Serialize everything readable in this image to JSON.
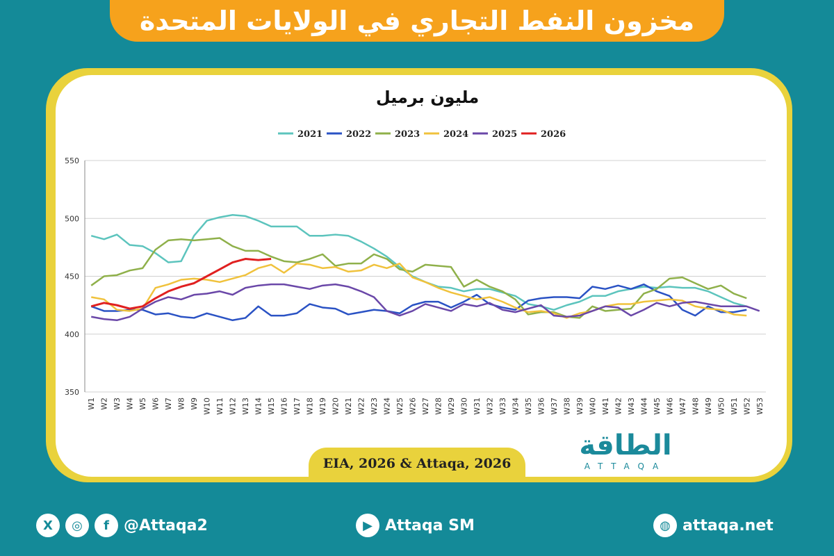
{
  "header": {
    "title": "مخزون النفط التجاري في الولايات المتحدة"
  },
  "chart_data": {
    "type": "line",
    "subtitle": "مليون برميل",
    "categories": [
      "W1",
      "W2",
      "W3",
      "W4",
      "W5",
      "W6",
      "W7",
      "W8",
      "W9",
      "W10",
      "W11",
      "W12",
      "W13",
      "W14",
      "W15",
      "W16",
      "W17",
      "W18",
      "W19",
      "W20",
      "W21",
      "W22",
      "W23",
      "W24",
      "W25",
      "W26",
      "W27",
      "W28",
      "W29",
      "W30",
      "W31",
      "W32",
      "W33",
      "W34",
      "W35",
      "W36",
      "W37",
      "W38",
      "W39",
      "W40",
      "W41",
      "W42",
      "W43",
      "W44",
      "W45",
      "W46",
      "W47",
      "W48",
      "W49",
      "W50",
      "W51",
      "W52",
      "W53"
    ],
    "ylim": [
      350,
      550
    ],
    "yticks": [
      350,
      400,
      450,
      500,
      550
    ],
    "grid": true,
    "series": [
      {
        "name": "2021",
        "color": "#5cc4bd",
        "values": [
          485,
          482,
          486,
          477,
          476,
          470,
          462,
          463,
          485,
          498,
          501,
          503,
          502,
          498,
          493,
          493,
          493,
          485,
          485,
          486,
          485,
          480,
          474,
          467,
          458,
          450,
          445,
          441,
          440,
          437,
          439,
          439,
          436,
          433,
          426,
          424,
          421,
          425,
          428,
          433,
          433,
          437,
          439,
          441,
          440,
          441,
          440,
          440,
          437,
          432,
          427,
          424,
          null
        ]
      },
      {
        "name": "2022",
        "color": "#2a52c4",
        "values": [
          424,
          420,
          420,
          421,
          421,
          417,
          418,
          415,
          414,
          418,
          415,
          412,
          414,
          424,
          416,
          416,
          418,
          426,
          423,
          422,
          417,
          419,
          421,
          420,
          418,
          425,
          428,
          428,
          423,
          428,
          434,
          426,
          423,
          421,
          429,
          431,
          432,
          432,
          431,
          441,
          439,
          442,
          439,
          443,
          437,
          433,
          421,
          416,
          424,
          419,
          419,
          421,
          null
        ]
      },
      {
        "name": "2023",
        "color": "#8fb04a",
        "values": [
          442,
          450,
          451,
          455,
          457,
          473,
          481,
          482,
          481,
          482,
          483,
          476,
          472,
          472,
          467,
          463,
          462,
          465,
          469,
          459,
          461,
          461,
          469,
          465,
          456,
          454,
          460,
          459,
          458,
          441,
          447,
          441,
          437,
          430,
          417,
          419,
          419,
          415,
          414,
          424,
          420,
          421,
          422,
          435,
          439,
          448,
          449,
          444,
          439,
          442,
          435,
          431,
          null
        ]
      },
      {
        "name": "2024",
        "color": "#f0c23c",
        "values": [
          432,
          430,
          421,
          420,
          422,
          440,
          443,
          447,
          448,
          447,
          445,
          448,
          451,
          457,
          460,
          453,
          461,
          460,
          457,
          458,
          454,
          455,
          460,
          457,
          461,
          449,
          445,
          440,
          436,
          433,
          430,
          432,
          428,
          423,
          419,
          420,
          418,
          414,
          418,
          420,
          424,
          426,
          426,
          428,
          429,
          430,
          429,
          424,
          422,
          421,
          417,
          416,
          null
        ]
      },
      {
        "name": "2025",
        "color": "#6a47a8",
        "values": [
          415,
          413,
          412,
          415,
          422,
          428,
          432,
          430,
          434,
          435,
          437,
          434,
          440,
          442,
          443,
          443,
          441,
          439,
          442,
          443,
          441,
          437,
          432,
          420,
          416,
          420,
          426,
          423,
          420,
          426,
          424,
          427,
          421,
          419,
          422,
          425,
          416,
          415,
          416,
          420,
          424,
          423,
          416,
          421,
          427,
          424,
          427,
          428,
          426,
          424,
          424,
          424,
          420
        ]
      },
      {
        "name": "2026",
        "color": "#e02020",
        "values": [
          424,
          427,
          425,
          422,
          424,
          431,
          437,
          441,
          444,
          450,
          456,
          462,
          465,
          464,
          465,
          null,
          null,
          null,
          null,
          null,
          null,
          null,
          null,
          null,
          null,
          null,
          null,
          null,
          null,
          null,
          null,
          null,
          null,
          null,
          null,
          null,
          null,
          null,
          null,
          null,
          null,
          null,
          null,
          null,
          null,
          null,
          null,
          null,
          null,
          null,
          null,
          null,
          null
        ]
      }
    ]
  },
  "source": "EIA, 2026 & Attaqa, 2026",
  "logo": {
    "name": "الطاقة",
    "latin": "ATTAQA"
  },
  "footer": {
    "social": "@Attaqa2",
    "youtube": "Attaqa SM",
    "web": "attaqa.net"
  }
}
